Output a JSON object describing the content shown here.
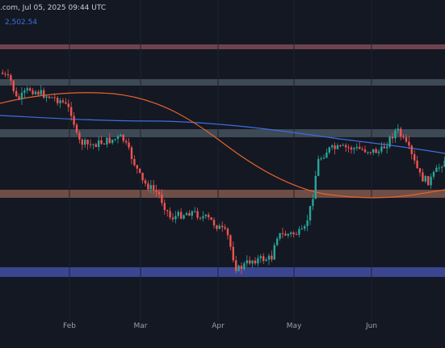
{
  "header": {
    "source_time": ".com, Jul 05, 2025 09:44 UTC",
    "ma_value": "2,502.54",
    "ma_value_color": "#3d6ee0"
  },
  "colors": {
    "background": "#141823",
    "up": "#26a69a",
    "down": "#ef5350",
    "ma_slow": "#e8622c",
    "ma_fast": "#3d6ee0",
    "zone_pink": "#7a4552",
    "zone_gray": "#3a4552",
    "zone_tan": "#7a5548",
    "zone_blue": "#3f4d95"
  },
  "chart_data": {
    "type": "candlestick",
    "title": "",
    "xlabel": "",
    "ylabel": "",
    "x_ticks": [
      "Feb",
      "Mar",
      "Apr",
      "May",
      "Jun"
    ],
    "zones": [
      {
        "name": "resistance-pink",
        "y_top": 0.4,
        "y_bottom": 0.0
      },
      {
        "name": "resistance-gray-upper",
        "y_top": 0.0,
        "y_bottom": 0.0
      }
    ],
    "series": []
  }
}
